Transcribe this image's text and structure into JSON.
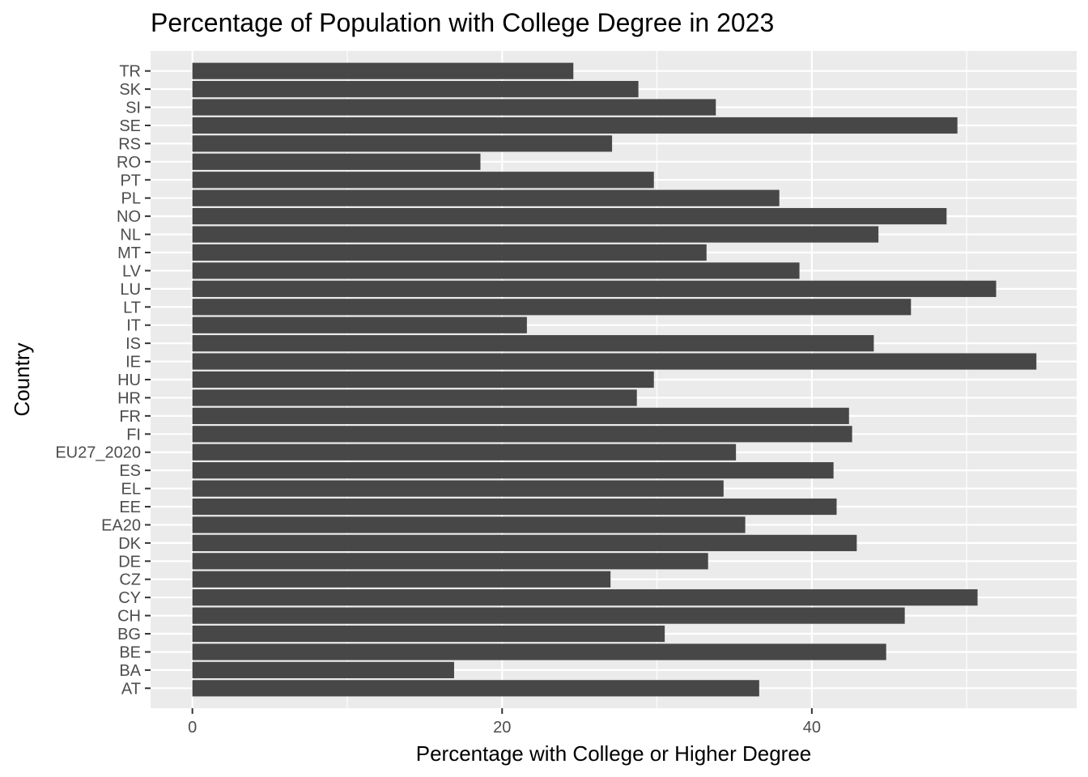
{
  "chart_data": {
    "type": "bar",
    "orientation": "horizontal",
    "title": "Percentage of Population with College Degree in 2023",
    "xlabel": "Percentage with College or Higher Degree",
    "ylabel": "Country",
    "xlim": [
      -2.7,
      57.1
    ],
    "x_ticks": [
      0,
      20,
      40
    ],
    "grid": true,
    "categories": [
      "TR",
      "SK",
      "SI",
      "SE",
      "RS",
      "RO",
      "PT",
      "PL",
      "NO",
      "NL",
      "MT",
      "LV",
      "LU",
      "LT",
      "IT",
      "IS",
      "IE",
      "HU",
      "HR",
      "FR",
      "FI",
      "EU27_2020",
      "ES",
      "EL",
      "EE",
      "EA20",
      "DK",
      "DE",
      "CZ",
      "CY",
      "CH",
      "BG",
      "BE",
      "BA",
      "AT"
    ],
    "values": [
      24.6,
      28.8,
      33.8,
      49.4,
      27.1,
      18.6,
      29.8,
      37.9,
      48.7,
      44.3,
      33.2,
      39.2,
      51.9,
      46.4,
      21.6,
      44.0,
      54.5,
      29.8,
      28.7,
      42.4,
      42.6,
      35.1,
      41.4,
      34.3,
      41.6,
      35.7,
      42.9,
      33.3,
      27.0,
      50.7,
      46.0,
      30.5,
      44.8,
      16.9,
      36.6
    ],
    "colors": {
      "bar": "#474747",
      "panel": "#ebebeb",
      "grid": "#ffffff",
      "tick_text": "#4d4d4d",
      "tick_mark": "#333333"
    }
  }
}
